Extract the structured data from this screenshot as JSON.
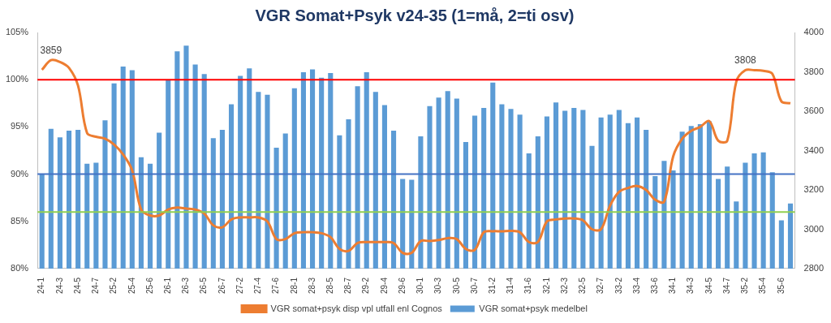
{
  "chart_data": {
    "type": "bar",
    "title": "VGR Somat+Psyk v24-35 (1=må, 2=ti osv)",
    "categories": [
      "24-1",
      null,
      "24-3",
      null,
      "24-5",
      null,
      "24-7",
      null,
      "25-2",
      null,
      "25-4",
      null,
      "25-6",
      null,
      "26-1",
      null,
      "26-3",
      null,
      "26-5",
      null,
      "26-7",
      null,
      "27-2",
      null,
      "27-4",
      null,
      "27-6",
      null,
      "28-1",
      null,
      "28-3",
      null,
      "28-5",
      null,
      "28-7",
      null,
      "29-2",
      null,
      "29-4",
      null,
      "29-6",
      null,
      "30-1",
      null,
      "30-3",
      null,
      "30-5",
      null,
      "30-7",
      null,
      "31-2",
      null,
      "31-4",
      null,
      "31-6",
      null,
      "32-1",
      null,
      "32-3",
      null,
      "32-5",
      null,
      "32-7",
      null,
      "33-2",
      null,
      "33-4",
      null,
      "33-6",
      null,
      "34-1",
      null,
      "34-3",
      null,
      "34-5",
      null,
      "34-7",
      null,
      "35-2",
      null,
      "35-4",
      null,
      "35-6",
      null
    ],
    "series": [
      {
        "name": "VGR somat+psyk medelbel",
        "type": "bar",
        "color": "#5b9bd5",
        "values": [
          90.0,
          94.8,
          93.9,
          94.6,
          94.7,
          91.1,
          91.2,
          95.7,
          99.6,
          101.4,
          101.0,
          91.8,
          91.1,
          94.4,
          100.0,
          103.0,
          103.6,
          101.6,
          100.6,
          93.8,
          94.7,
          97.4,
          100.4,
          101.2,
          98.7,
          98.4,
          92.8,
          94.3,
          99.1,
          100.8,
          101.1,
          100.2,
          100.7,
          94.1,
          95.8,
          99.3,
          100.8,
          98.7,
          97.3,
          94.6,
          89.5,
          89.4,
          94.0,
          97.2,
          98.1,
          98.8,
          98.0,
          93.4,
          96.2,
          97.0,
          99.7,
          97.4,
          96.9,
          96.3,
          92.2,
          94.0,
          96.1,
          97.6,
          96.7,
          97.0,
          96.8,
          93.0,
          96.0,
          96.3,
          96.8,
          95.4,
          96.0,
          94.7,
          89.8,
          91.4,
          90.4,
          94.5,
          95.1,
          95.3,
          95.6,
          89.5,
          90.8,
          87.1,
          91.2,
          92.2,
          92.3,
          90.2,
          85.1,
          86.9
        ]
      },
      {
        "name": "VGR somat+psyk disp vpl utfall enl Cognos",
        "type": "line",
        "color": "#ed7d31",
        "axis": "y2",
        "values": [
          3810,
          3859,
          3850,
          3820,
          3730,
          3490,
          3470,
          3460,
          3430,
          3380,
          3300,
          3100,
          3070,
          3070,
          3100,
          3110,
          3105,
          3100,
          3080,
          3020,
          3010,
          3050,
          3060,
          3060,
          3060,
          3040,
          2950,
          2950,
          2980,
          2985,
          2985,
          2980,
          2960,
          2900,
          2890,
          2930,
          2935,
          2935,
          2935,
          2930,
          2880,
          2880,
          2940,
          2940,
          2945,
          2955,
          2950,
          2900,
          2895,
          2985,
          2990,
          2990,
          2992,
          2985,
          2935,
          2935,
          3040,
          3050,
          3055,
          3055,
          3045,
          3000,
          3000,
          3120,
          3190,
          3210,
          3220,
          3200,
          3150,
          3140,
          3370,
          3460,
          3500,
          3520,
          3550,
          3450,
          3450,
          3750,
          3808,
          3808,
          3805,
          3790,
          3650,
          3640
        ]
      }
    ],
    "ylim": [
      80,
      105
    ],
    "yticks": [
      {
        "value": 80,
        "label": "80%"
      },
      {
        "value": 85,
        "label": "85%"
      },
      {
        "value": 90,
        "label": "90%"
      },
      {
        "value": 95,
        "label": "95%"
      },
      {
        "value": 100,
        "label": "100%"
      },
      {
        "value": 105,
        "label": "105%"
      }
    ],
    "y2lim": [
      2800,
      4000
    ],
    "y2ticks": [
      2800,
      3000,
      3200,
      3400,
      3600,
      3800,
      4000
    ],
    "reference_lines": [
      {
        "value": 100,
        "color": "#ff0000"
      },
      {
        "value": 90,
        "color": "#4472c4"
      },
      {
        "value": 86,
        "color": "#92d050"
      }
    ],
    "annotations": [
      {
        "text": "3859",
        "x": 1,
        "y": 3859,
        "axis": "y2"
      },
      {
        "text": "3808",
        "x": 78,
        "y": 3808,
        "axis": "y2"
      }
    ],
    "grid": false,
    "legend": "bottom"
  }
}
